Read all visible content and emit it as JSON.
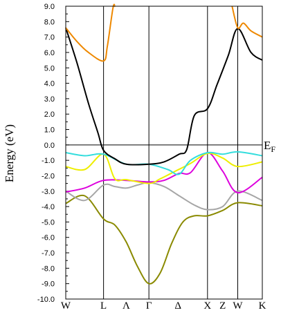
{
  "chart_data": {
    "type": "line",
    "ylabel": "Energy (eV)",
    "ylim": [
      -10.0,
      9.0
    ],
    "ytick_values": [
      9,
      8,
      7,
      6,
      5,
      4,
      3,
      2,
      1,
      0,
      -1,
      -2,
      -3,
      -4,
      -5,
      -6,
      -7,
      -8,
      -9,
      -10
    ],
    "ytick_labels": [
      "9.0",
      "8.0",
      "7.0",
      "6.0",
      "5.0",
      "4.0",
      "3.0",
      "2.0",
      "1.0",
      "0.0",
      "-1.0",
      "-2.0",
      "-3.0",
      "-4.0",
      "-5.0",
      "-6.0",
      "-7.0",
      "-8.0",
      "-9.0",
      "-10.0"
    ],
    "xlim": [
      0,
      5.2
    ],
    "kpoints": [
      {
        "label": "W",
        "x": 0.0,
        "vline": false
      },
      {
        "label": "L",
        "x": 1.0,
        "vline": true
      },
      {
        "label": "Λ",
        "x": 1.6,
        "vline": false
      },
      {
        "label": "Γ",
        "x": 2.2,
        "vline": true
      },
      {
        "label": "Δ",
        "x": 2.97,
        "vline": false
      },
      {
        "label": "X",
        "x": 3.75,
        "vline": true
      },
      {
        "label": "Z",
        "x": 4.15,
        "vline": false
      },
      {
        "label": "W",
        "x": 4.55,
        "vline": true
      },
      {
        "label": "K",
        "x": 5.2,
        "vline": false
      }
    ],
    "fermi_level": {
      "value": 0.0,
      "label": "E",
      "sub": "F"
    },
    "series": [
      {
        "color": "#8a8a00",
        "points": [
          [
            0,
            -3.8
          ],
          [
            0.5,
            -3.3
          ],
          [
            1.0,
            -4.8
          ],
          [
            1.3,
            -5.2
          ],
          [
            1.6,
            -6.3
          ],
          [
            1.9,
            -7.9
          ],
          [
            2.2,
            -9.0
          ],
          [
            2.5,
            -8.3
          ],
          [
            2.8,
            -6.4
          ],
          [
            3.1,
            -5.0
          ],
          [
            3.4,
            -4.6
          ],
          [
            3.75,
            -4.6
          ],
          [
            4.15,
            -4.25
          ],
          [
            4.55,
            -3.75
          ],
          [
            5.2,
            -3.95
          ]
        ]
      },
      {
        "color": "#a6a6a6",
        "points": [
          [
            0,
            -3.0
          ],
          [
            0.5,
            -3.6
          ],
          [
            1.0,
            -2.6
          ],
          [
            1.3,
            -2.7
          ],
          [
            1.6,
            -2.8
          ],
          [
            1.9,
            -2.6
          ],
          [
            2.2,
            -2.45
          ],
          [
            2.6,
            -2.7
          ],
          [
            3.0,
            -3.3
          ],
          [
            3.4,
            -3.9
          ],
          [
            3.75,
            -4.2
          ],
          [
            4.15,
            -4.0
          ],
          [
            4.55,
            -3.0
          ],
          [
            5.2,
            -3.6
          ]
        ]
      },
      {
        "color": "#dd00dd",
        "points": [
          [
            0,
            -3.05
          ],
          [
            0.5,
            -2.8
          ],
          [
            1.0,
            -2.3
          ],
          [
            1.6,
            -2.3
          ],
          [
            2.2,
            -2.4
          ],
          [
            2.6,
            -2.3
          ],
          [
            3.0,
            -1.85
          ],
          [
            3.3,
            -1.8
          ],
          [
            3.75,
            -0.5
          ],
          [
            4.15,
            -1.7
          ],
          [
            4.55,
            -3.1
          ],
          [
            5.2,
            -2.1
          ]
        ]
      },
      {
        "color": "#eeee00",
        "points": [
          [
            0,
            -1.4
          ],
          [
            0.5,
            -1.6
          ],
          [
            1.0,
            -0.6
          ],
          [
            1.3,
            -2.2
          ],
          [
            1.6,
            -2.25
          ],
          [
            2.2,
            -2.5
          ],
          [
            2.5,
            -2.2
          ],
          [
            2.9,
            -1.7
          ],
          [
            3.3,
            -1.2
          ],
          [
            3.75,
            -0.55
          ],
          [
            4.15,
            -0.85
          ],
          [
            4.55,
            -1.4
          ],
          [
            5.2,
            -1.1
          ]
        ]
      },
      {
        "color": "#33dddd",
        "points": [
          [
            0,
            -0.5
          ],
          [
            0.5,
            -0.7
          ],
          [
            1.0,
            -0.6
          ],
          [
            1.6,
            -1.25
          ],
          [
            2.2,
            -1.25
          ],
          [
            2.7,
            -1.6
          ],
          [
            3.0,
            -1.9
          ],
          [
            3.3,
            -1.0
          ],
          [
            3.75,
            -0.5
          ],
          [
            4.15,
            -0.6
          ],
          [
            4.55,
            -0.45
          ],
          [
            5.2,
            -0.7
          ]
        ]
      },
      {
        "color": "#000000",
        "points": [
          [
            0,
            7.6
          ],
          [
            0.3,
            5.3
          ],
          [
            0.6,
            2.7
          ],
          [
            0.85,
            0.8
          ],
          [
            1.0,
            -0.35
          ],
          [
            1.3,
            -0.9
          ],
          [
            1.6,
            -1.25
          ],
          [
            2.2,
            -1.25
          ],
          [
            2.6,
            -1.1
          ],
          [
            3.0,
            -0.6
          ],
          [
            3.2,
            -0.3
          ],
          [
            3.4,
            1.9
          ],
          [
            3.75,
            2.35
          ],
          [
            4.0,
            3.9
          ],
          [
            4.3,
            5.8
          ],
          [
            4.55,
            7.55
          ],
          [
            4.9,
            6.0
          ],
          [
            5.2,
            5.5
          ]
        ]
      },
      {
        "color": "#ee8800",
        "points": [
          [
            0,
            7.6
          ],
          [
            0.3,
            6.7
          ],
          [
            0.6,
            6.0
          ],
          [
            1.0,
            5.45
          ],
          [
            1.1,
            6.4
          ],
          [
            1.25,
            8.9
          ],
          [
            1.3,
            9.0
          ]
        ]
      },
      {
        "color": "#ee8800",
        "points": [
          [
            4.4,
            9.0
          ],
          [
            4.55,
            7.6
          ],
          [
            4.7,
            7.9
          ],
          [
            4.9,
            7.4
          ],
          [
            5.2,
            7.0
          ]
        ]
      }
    ]
  }
}
